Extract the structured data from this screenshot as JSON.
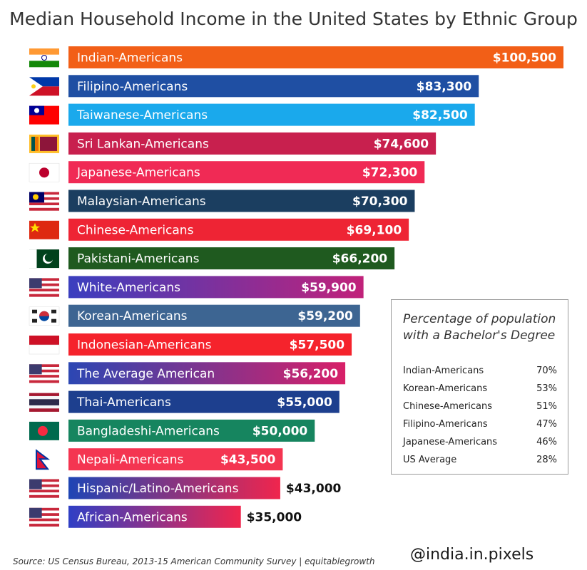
{
  "title": "Median Household Income in the United States  by Ethnic Group",
  "source": "Source: US Census Bureau, 2013-15 American Community Survey | equitablegrowth",
  "handle": "@india.in.pixels",
  "chart_data": {
    "type": "bar",
    "orientation": "horizontal",
    "title": "Median Household Income in the United States  by Ethnic Group",
    "xlim": [
      0,
      100500
    ],
    "categories": [
      "Indian-Americans",
      "Filipino-Americans",
      "Taiwanese-Americans",
      "Sri Lankan-Americans",
      "Japanese-Americans",
      "Malaysian-Americans",
      "Chinese-Americans",
      "Pakistani-Americans",
      "White-Americans",
      "Korean-Americans",
      "Indonesian-Americans",
      "The Average American",
      "Thai-Americans",
      "Bangladeshi-Americans",
      "Nepali-Americans",
      "Hispanic/Latino-Americans",
      "African-Americans"
    ],
    "values": [
      100500,
      83300,
      82500,
      74600,
      72300,
      70300,
      69100,
      66200,
      59900,
      59200,
      57500,
      56200,
      55000,
      50000,
      43500,
      43000,
      35000
    ],
    "value_labels": [
      "$100,500",
      "$83,300",
      "$82,500",
      "$74,600",
      "$72,300",
      "$70,300",
      "$69,100",
      "$66,200",
      "$59,900",
      "$59,200",
      "$57,500",
      "$56,200",
      "$55,000",
      "$50,000",
      "$43,500",
      "$43,000",
      "$35,000"
    ],
    "bar_colors": [
      "#f25f17",
      "#1f4fa3",
      "#1aa9ec",
      "#c8204e",
      "#f02a55",
      "#1b3e60",
      "#ee2434",
      "#1f5a1f",
      "#3a3fbf",
      "#3d6592",
      "#f5232c",
      "#2c47b3",
      "#1d3f8e",
      "#16855f",
      "#f43551",
      "#1e45b5",
      "#2f3fc5"
    ],
    "gradient_end_colors": [
      "",
      "",
      "",
      "",
      "",
      "",
      "",
      "",
      "#c1227a",
      "",
      "",
      "#d82068",
      "",
      "",
      "",
      "#f0254d",
      "#f0254d"
    ],
    "label_outside": [
      false,
      false,
      false,
      false,
      false,
      false,
      false,
      false,
      false,
      false,
      false,
      false,
      false,
      false,
      false,
      true,
      true
    ],
    "flags": [
      "india-flag",
      "philippines-flag",
      "taiwan-flag",
      "sri-lanka-flag",
      "japan-flag",
      "malaysia-flag",
      "china-flag",
      "pakistan-flag",
      "usa-flag",
      "south-korea-flag",
      "indonesia-flag",
      "usa-flag",
      "thailand-flag",
      "bangladesh-flag",
      "nepal-flag",
      "usa-flag",
      "usa-flag"
    ]
  },
  "legend": {
    "title": "Percentage of population with a Bachelor's Degree",
    "rows": [
      {
        "name": "Indian-Americans",
        "value": "70%"
      },
      {
        "name": "Korean-Americans",
        "value": "53%"
      },
      {
        "name": "Chinese-Americans",
        "value": "51%"
      },
      {
        "name": "Filipino-Americans",
        "value": "47%"
      },
      {
        "name": "Japanese-Americans",
        "value": "46%"
      },
      {
        "name": "US Average",
        "value": "28%"
      }
    ]
  }
}
